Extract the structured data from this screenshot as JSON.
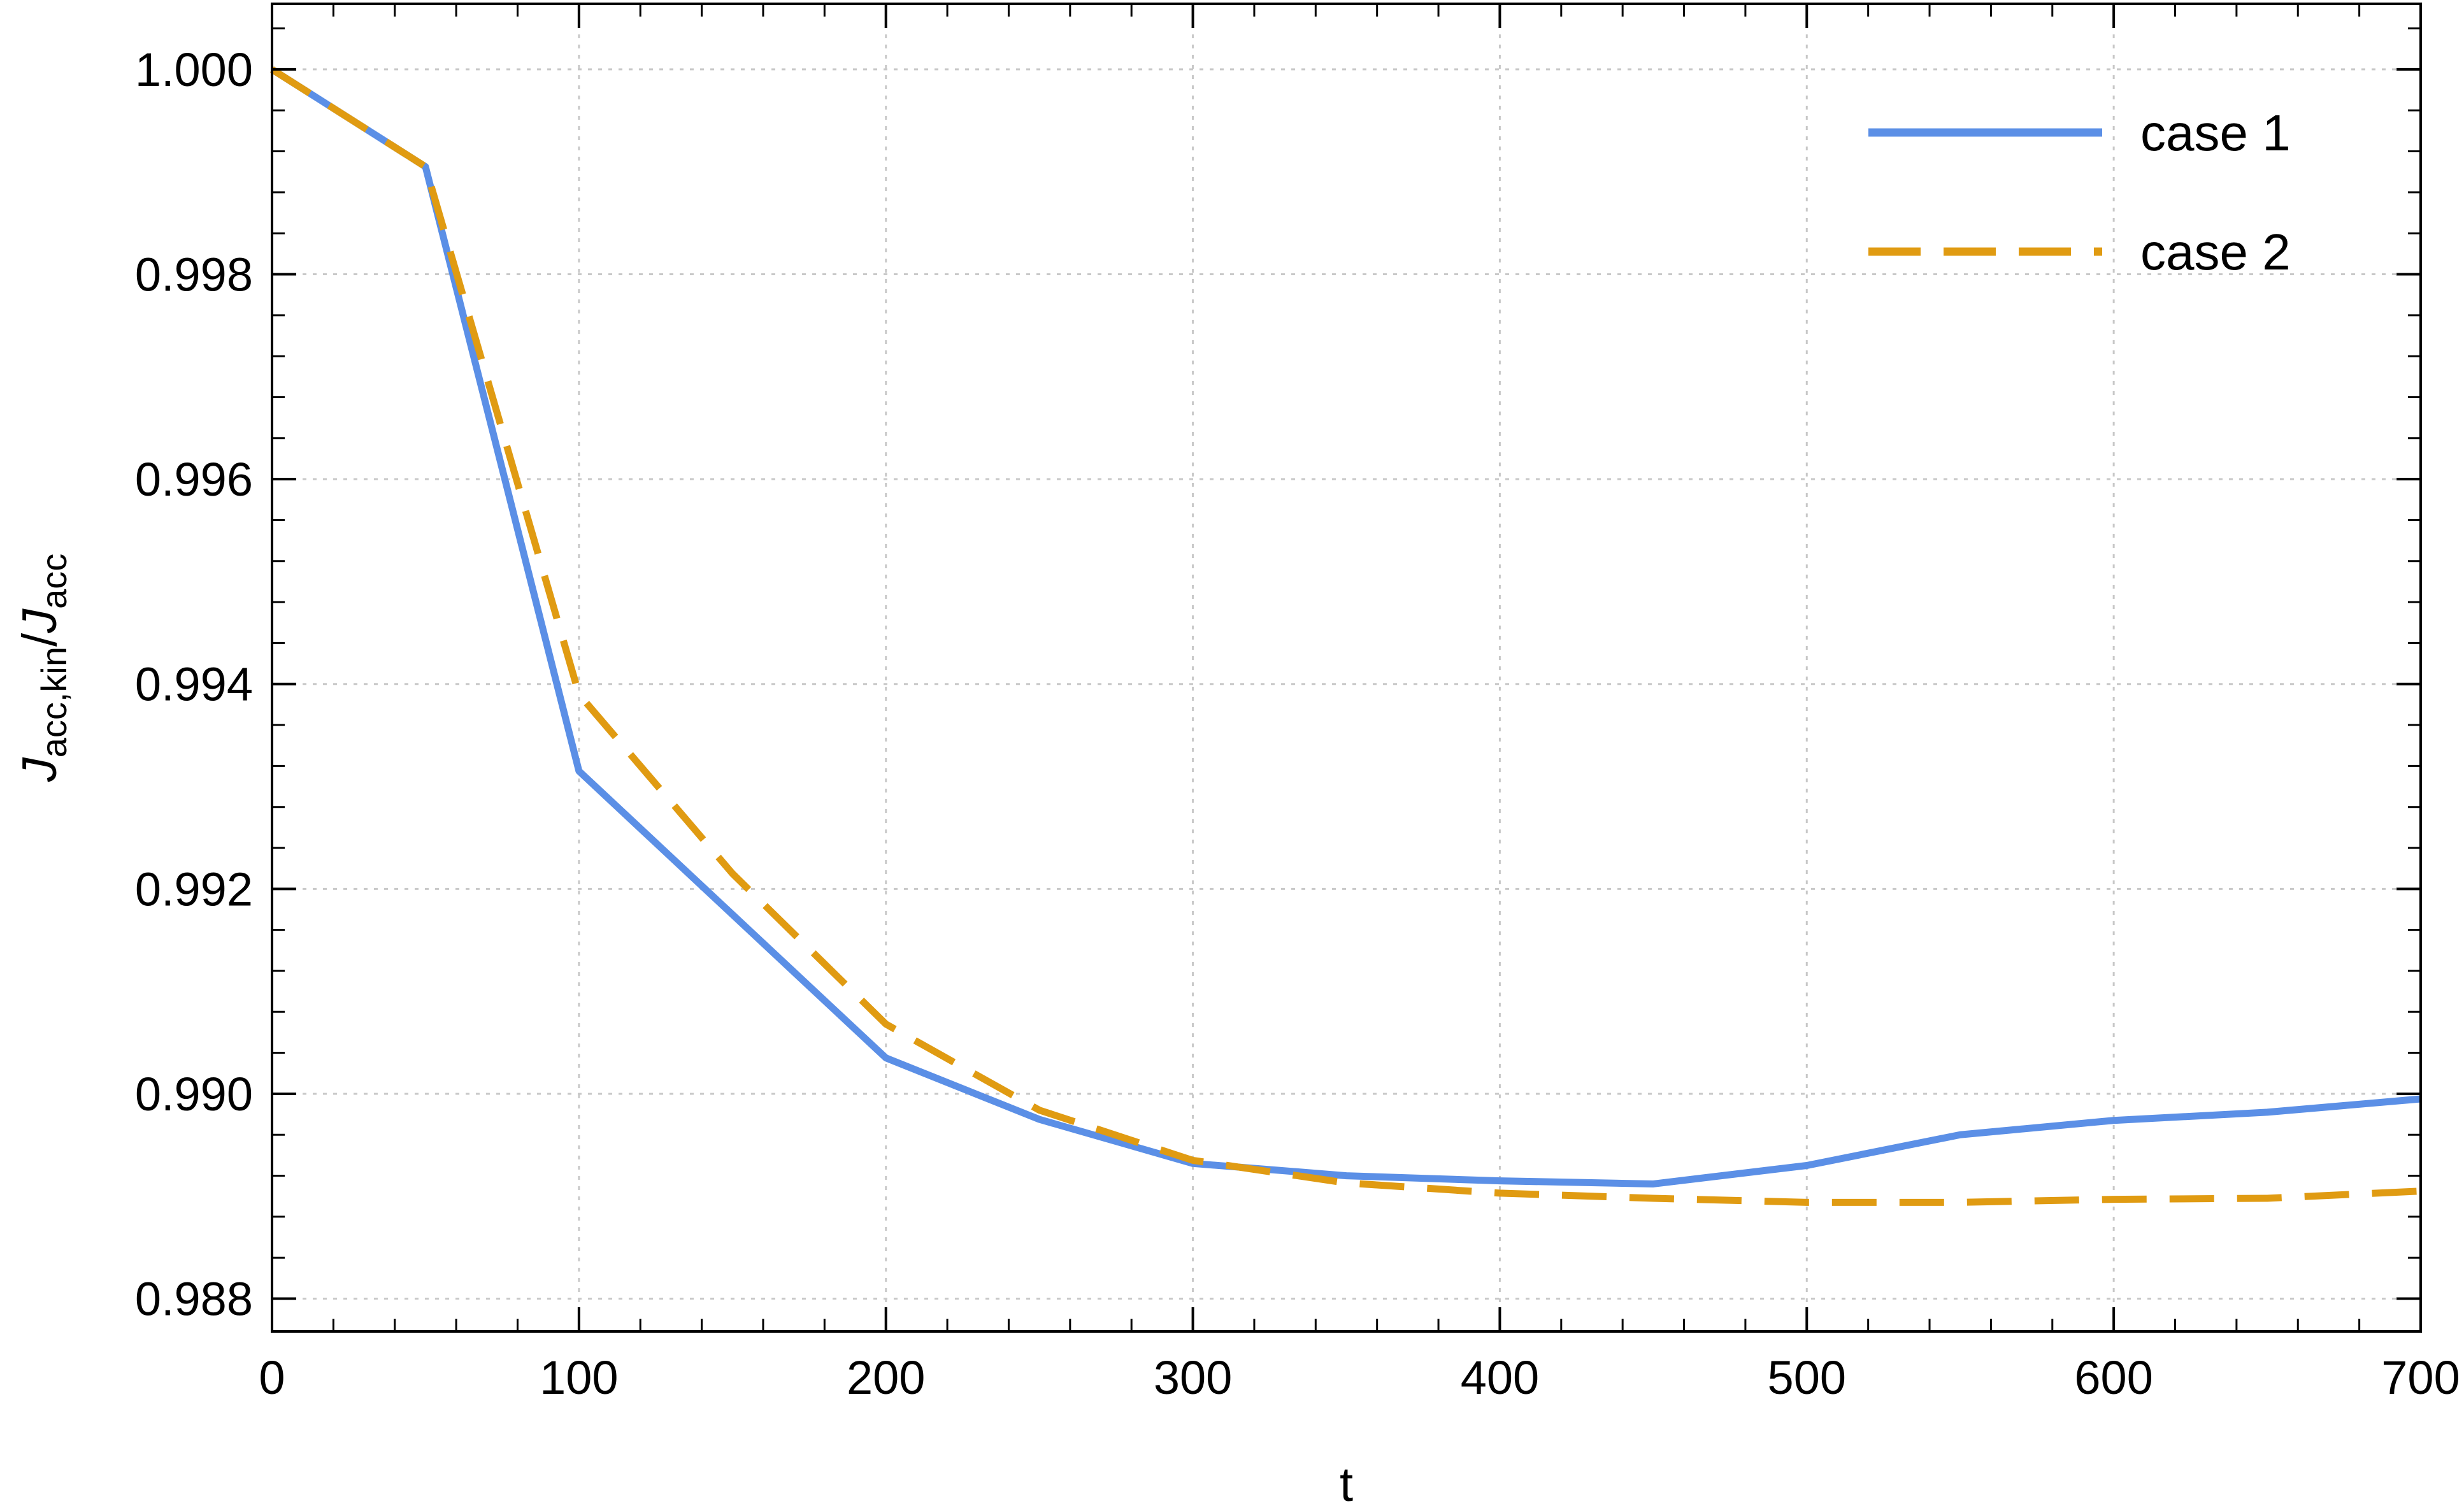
{
  "chart_data": {
    "type": "line",
    "xlabel": "t",
    "ylabel": {
      "main": "J",
      "sub1": "acc,kin",
      "slash": "/",
      "main2": "J",
      "sub2": "acc"
    },
    "xlim": [
      0,
      700
    ],
    "ylim": [
      0.98768,
      1.00064
    ],
    "x_ticks": [
      0,
      100,
      200,
      300,
      400,
      500,
      600,
      700
    ],
    "x_tick_labels": [
      "0",
      "100",
      "200",
      "300",
      "400",
      "500",
      "600",
      "700"
    ],
    "y_ticks": [
      0.988,
      0.99,
      0.992,
      0.994,
      0.996,
      0.998,
      1.0
    ],
    "y_tick_labels": [
      "0.988",
      "0.990",
      "0.992",
      "0.994",
      "0.996",
      "0.998",
      "1.000"
    ],
    "grid": true,
    "legend_position": "top-right",
    "x": [
      0,
      50,
      100,
      150,
      200,
      250,
      300,
      350,
      400,
      450,
      500,
      550,
      600,
      650,
      700
    ],
    "series": [
      {
        "name": "case 1",
        "color": "#5b8fe6",
        "style": "solid",
        "values": [
          1.0,
          0.99905,
          0.99315,
          0.99175,
          0.99035,
          0.98975,
          0.98932,
          0.9892,
          0.98915,
          0.98912,
          0.9893,
          0.9896,
          0.98974,
          0.98982,
          0.98995
        ]
      },
      {
        "name": "case 2",
        "color": "#e09b12",
        "style": "dashed",
        "values": [
          1.0,
          0.99905,
          0.9939,
          0.99215,
          0.99068,
          0.98984,
          0.98935,
          0.98913,
          0.98903,
          0.98898,
          0.98894,
          0.98894,
          0.98897,
          0.98898,
          0.98905
        ]
      }
    ]
  }
}
